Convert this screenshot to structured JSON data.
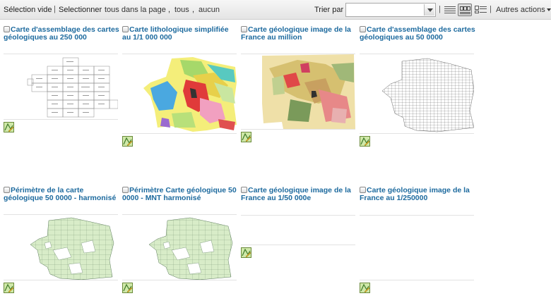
{
  "toolbar": {
    "selection_empty": "Sélection vide",
    "sep1": "|",
    "select_label": "Selectionner",
    "all_in_page": "tous dans la page",
    "comma1": ",",
    "all": "tous",
    "comma2": ",",
    "none": "aucun",
    "sort_label": "Trier par",
    "sort_value": "",
    "sep2": "|",
    "sep3": "|",
    "other_actions": "Autres actions"
  },
  "cards": [
    {
      "title": "Carte d'assemblage des cartes géologiques au 250 000",
      "thumb": "grid250"
    },
    {
      "title": "Carte lithologique simplifiée au 1/1 000 000",
      "thumb": "litho"
    },
    {
      "title": "Carte géologique image de la France au million",
      "thumb": "geomillion"
    },
    {
      "title": "Carte d'assemblage des cartes géologiques au 50 0000",
      "thumb": "grid50"
    },
    {
      "title": "Périmètre de la carte géologique 50 0000 - harmonisé",
      "thumb": "perimetre"
    },
    {
      "title": "Périmètre Carte géologique 50 0000 - MNT harmonisé",
      "thumb": "perimetre"
    },
    {
      "title": "Carte géologique image de la France au 1/50 000e",
      "thumb": "empty"
    },
    {
      "title": "Carte géologique image de la France au 1/250000",
      "thumb": "empty"
    }
  ],
  "icons": {
    "action": "map-edit-icon",
    "list_view": "list-view-icon",
    "grid_view": "grid-view-icon",
    "detail_view": "detail-view-icon"
  },
  "colors": {
    "title": "#1d6a9e",
    "toolbar_bg": "#e9e9e9"
  }
}
